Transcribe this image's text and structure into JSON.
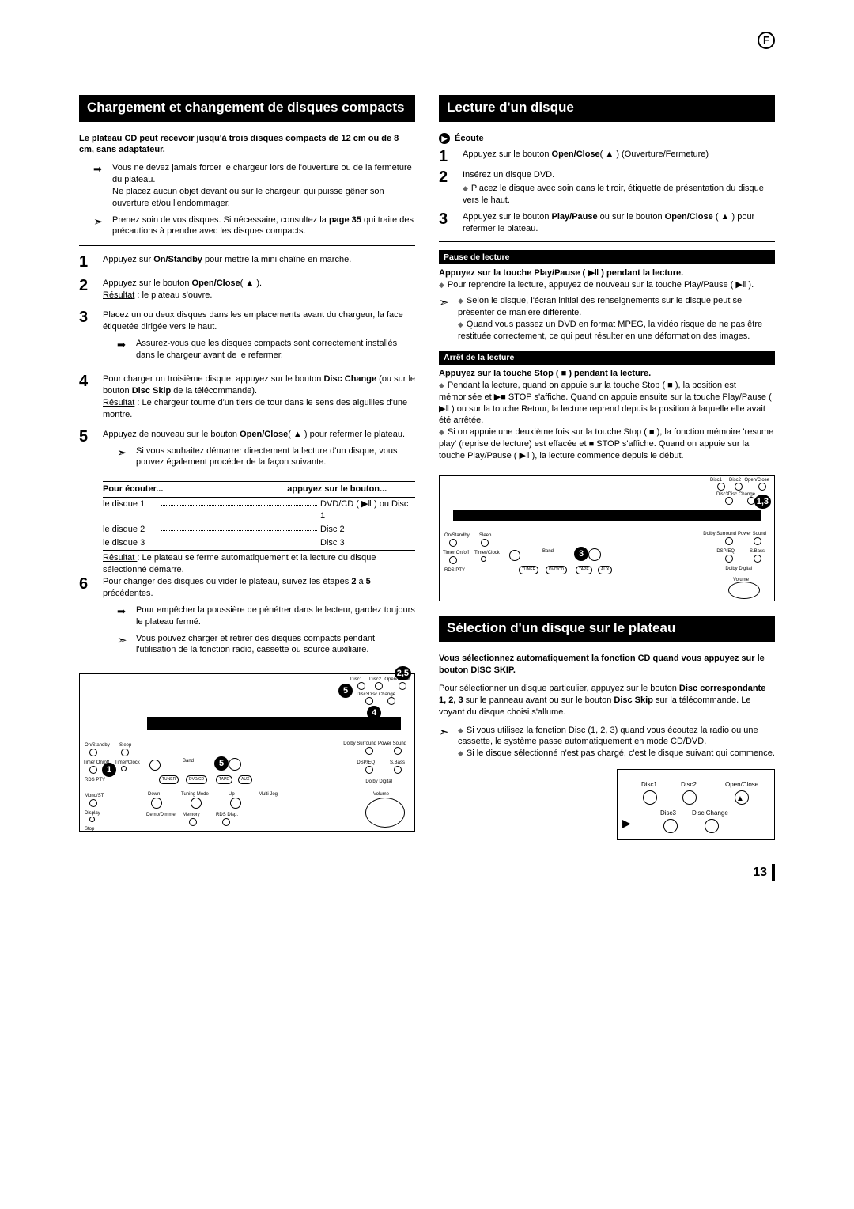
{
  "lang_badge": "F",
  "page_number": "13",
  "left": {
    "title": "Chargement et changement de disques compacts",
    "intro": "Le plateau CD peut recevoir jusqu'à trois disques compacts de 12 cm ou de 8 cm, sans adaptateur.",
    "note1": "Vous ne devez jamais forcer le chargeur lors de l'ouverture ou de la fermeture du plateau.\nNe placez aucun objet devant ou sur le chargeur, qui puisse gêner son ouverture et/ou l'endommager.",
    "note2a": "Prenez soin de vos disques. Si nécessaire, consultez la ",
    "note2b": "page 35",
    "note2c": " qui traite des précautions à prendre avec les disques compacts.",
    "steps": [
      {
        "n": "1",
        "body": "Appuyez sur <b>On/Standby</b> pour mettre la mini chaîne en marche."
      },
      {
        "n": "2",
        "body": "Appuyez sur le bouton <b>Open/Close</b>( ▲ ).<br><u>Résultat</u> : le plateau s'ouvre."
      },
      {
        "n": "3",
        "body": "Placez un ou deux disques dans les emplacements avant du chargeur, la face étiquetée dirigée vers le haut.",
        "sub_arrow": "Assurez-vous que les disques compacts sont correctement installés dans le chargeur avant de le refermer."
      },
      {
        "n": "4",
        "body": "Pour charger un troisième disque, appuyez sur le bouton <b>Disc Change</b> (ou sur le bouton <b>Disc Skip</b> de la télécommande).<br><u>Résultat</u> : Le chargeur tourne d'un tiers de tour dans le sens des aiguilles d'une montre."
      },
      {
        "n": "5",
        "body": "Appuyez de nouveau sur le bouton <b>Open/Close</b>( ▲ ) pour refermer le plateau.",
        "sub_outline": "Si vous souhaitez démarrer directement la lecture d'un disque, vous pouvez également procéder de la façon suivante."
      },
      {
        "n": "6",
        "body": "Pour changer des disques ou vider le plateau, suivez les étapes <b>2</b> à <b>5</b> précédentes.",
        "sub_arrow": "Pour empêcher la poussière de pénétrer dans le lecteur, gardez toujours le plateau fermé.",
        "sub_outline": "Vous pouvez charger et retirer des disques compacts pendant l'utilisation de la fonction radio, cassette ou source auxiliaire."
      }
    ],
    "table": {
      "h1": "Pour écouter...",
      "h2": "appuyez sur le bouton...",
      "rows": [
        {
          "a": "le disque 1",
          "b": "DVD/CD ( ▶‖ ) ou Disc 1"
        },
        {
          "a": "le disque 2",
          "b": "Disc 2"
        },
        {
          "a": "le disque 3",
          "b": "Disc 3"
        }
      ],
      "result": "Résultat : Le plateau se ferme automatiquement et la lecture du disque sélectionné démarre."
    },
    "diagram": {
      "badges": {
        "b25": "2,5",
        "b5a": "5",
        "b4": "4",
        "b1": "1",
        "b5b": "5"
      },
      "labels": [
        "On/Standby",
        "Timer On/off",
        "Sleep",
        "Timer/Clock",
        "RDS PTY",
        "Mono/ST.",
        "Display",
        "Stop",
        "Disc1",
        "Disc2",
        "Open/Close",
        "Disc3",
        "Disc Change",
        "Band",
        "Tuning Mode",
        "Dolby Surround",
        "Power Sound",
        "DSP/EQ",
        "S.Bass",
        "Dolby Digital",
        "Volume",
        "Multi Jog",
        "Memory",
        "RDS Disp.",
        "Down",
        "Up",
        "TUNER",
        "DVD/CD",
        "TAPE",
        "AUX",
        "Demo/Dimmer"
      ]
    }
  },
  "right": {
    "title1": "Lecture d'un disque",
    "ecoute_label": "Écoute",
    "ecoute_steps": [
      {
        "n": "1",
        "body": "Appuyez sur le bouton <b>Open/Close</b>( ▲ ) (Ouverture/Fermeture)"
      },
      {
        "n": "2",
        "body": "Insérez un disque DVD.",
        "sub_diamond": "Placez le disque avec soin dans le tiroir, étiquette de présentation du disque vers le haut."
      },
      {
        "n": "3",
        "body": "Appuyez sur le bouton <b>Play/Pause</b> ou sur le bouton <b>Open/Close</b> ( ▲ ) pour refermer le plateau."
      }
    ],
    "pause_head": "Pause de lecture",
    "pause_bold": "Appuyez sur la touche Play/Pause ( ▶‖ ) pendant la lecture.",
    "pause_d1": "Pour reprendre la lecture, appuyez de nouveau sur la touche Play/Pause ( ▶‖ ).",
    "pause_out1": "Selon le disque, l'écran initial des renseignements sur le disque peut se présenter de manière différente.",
    "pause_out2": "Quand vous passez un DVD en format MPEG, la vidéo risque de ne pas être restituée correctement, ce qui peut résulter en une déformation des images.",
    "stop_head": "Arrêt de la lecture",
    "stop_bold": "Appuyez sur la touche Stop ( ■ ) pendant la lecture.",
    "stop_d1": "Pendant la lecture, quand on appuie sur la touche Stop ( ■ ), la position est mémorisée et ▶■ STOP s'affiche. Quand on appuie ensuite sur la touche Play/Pause ( ▶‖ ) ou sur la touche Retour, la lecture reprend depuis la position à laquelle elle avait été arrêtée.",
    "stop_d2": "Si on appuie une deuxième fois sur la touche Stop ( ■ ), la fonction mémoire 'resume play' (reprise de lecture) est effacée et ■ STOP s'affiche. Quand on appuie sur la touche Play/Pause ( ▶‖ ), la lecture commence depuis le début.",
    "diagram_badges": {
      "b13": "1,3",
      "b3": "3"
    },
    "diagram_labels": [
      "Disc1",
      "Disc2",
      "Open/Close",
      "Disc3",
      "Disc Change",
      "On/Standby",
      "Timer On/off",
      "Sleep",
      "Timer/Clock",
      "RDS PTY",
      "Band",
      "Dolby Surround",
      "Power Sound",
      "DSP/EQ",
      "S.Bass",
      "Dolby Digital",
      "Volume",
      "TUNER",
      "DVD/CD",
      "TAPE",
      "AUX"
    ],
    "title2": "Sélection d'un disque sur le plateau",
    "sel_bold": "Vous sélectionnez automatiquement la fonction CD quand vous appuyez sur le bouton DISC SKIP.",
    "sel_body": "Pour sélectionner un disque particulier, appuyez sur le bouton <b>Disc correspondante 1, 2, 3</b> sur le panneau avant ou sur le bouton <b>Disc Skip</b> sur la télécommande. Le voyant du disque choisi s'allume.",
    "sel_out1": "Si vous utilisez la fonction Disc (1, 2, 3) quand vous écoutez la radio ou une cassette, le système passe automatiquement en mode CD/DVD.",
    "sel_out2": "Si le disque sélectionné n'est pas chargé, c'est le disque suivant qui commence.",
    "tiny_labels": [
      "Disc1",
      "Disc2",
      "Open/Close",
      "Disc3",
      "Disc Change"
    ]
  }
}
